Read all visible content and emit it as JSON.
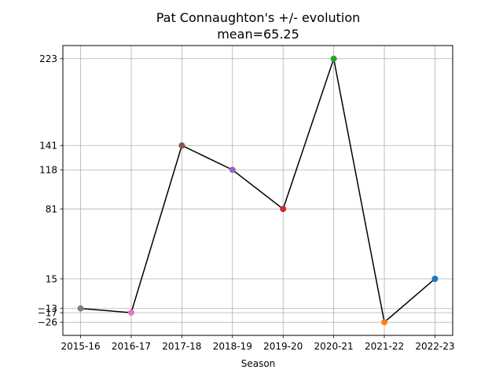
{
  "chart_data": {
    "type": "line",
    "title": "Pat Connaughton's +/- evolution",
    "subtitle": "mean=65.25",
    "xlabel": "Season",
    "ylabel": "",
    "categories": [
      "2015-16",
      "2016-17",
      "2017-18",
      "2018-19",
      "2019-20",
      "2020-21",
      "2021-22",
      "2022-23"
    ],
    "values": [
      -13,
      -17,
      141,
      118,
      81,
      223,
      -26,
      15
    ],
    "point_colors": [
      "#7f7f7f",
      "#e377c2",
      "#8c564b",
      "#9467bd",
      "#d62728",
      "#2ca02c",
      "#ff7f0e",
      "#1f77b4"
    ],
    "line_color": "#000000",
    "y_ticks": [
      -26,
      -17,
      -13,
      15,
      81,
      118,
      141,
      223
    ],
    "y_tick_labels": [
      "−26",
      "−17",
      "−13",
      "15",
      "81",
      "118",
      "141",
      "223"
    ],
    "ylim": [
      -38.45,
      235.45
    ],
    "grid": true
  }
}
